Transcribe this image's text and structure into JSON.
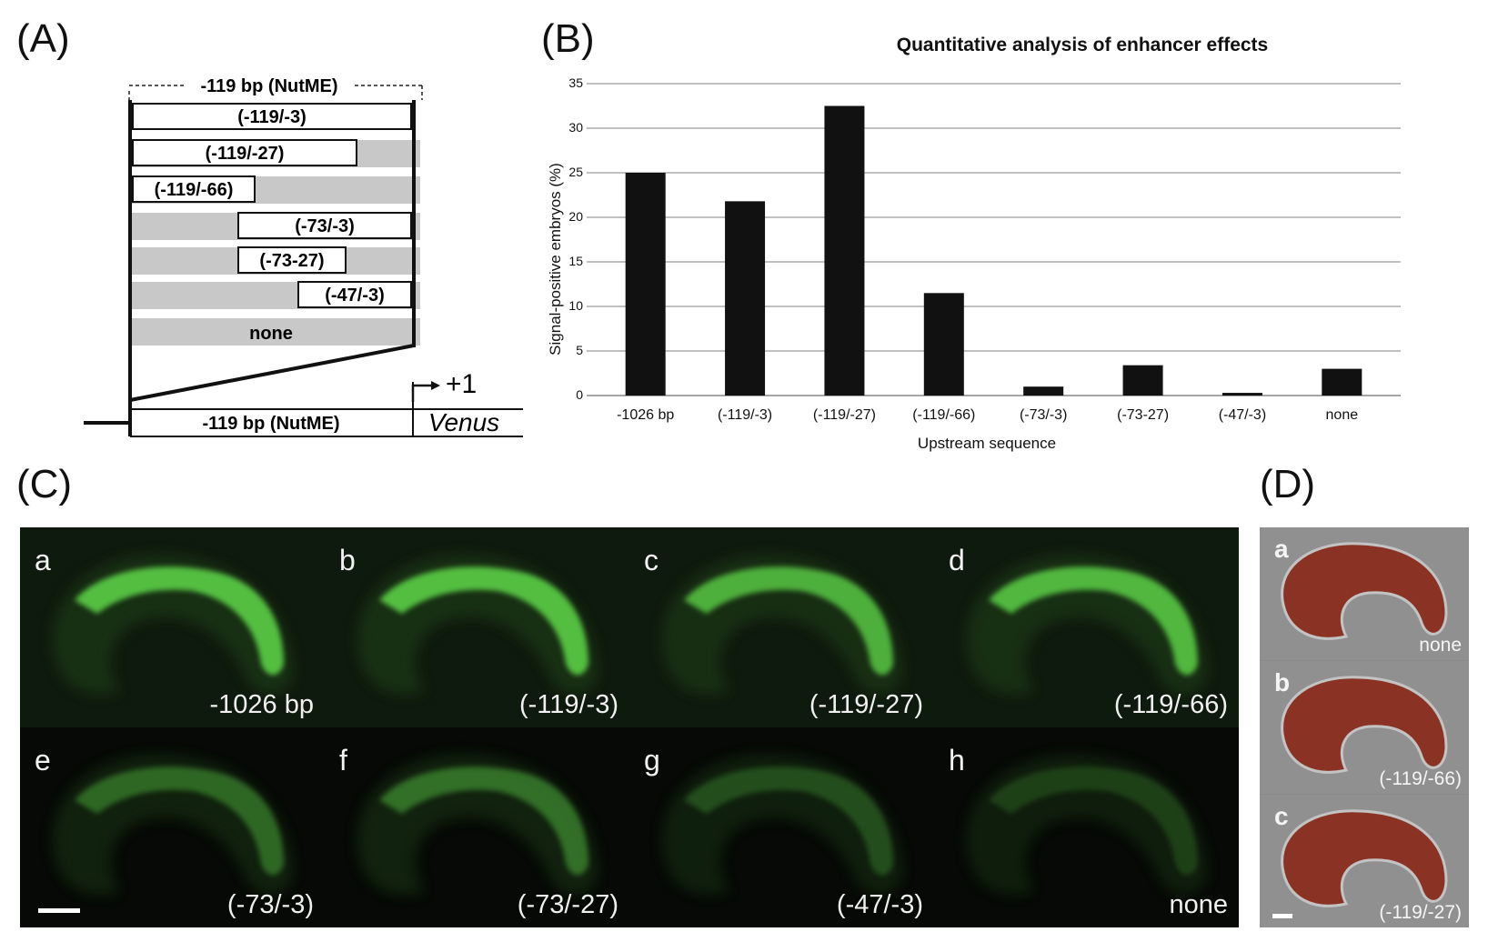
{
  "panel_labels": {
    "a": "(A)",
    "b": "(B)",
    "c": "(C)",
    "d": "(D)"
  },
  "panel_a": {
    "header": "-119 bp (NutME)",
    "constructs": [
      "(-119/-3)",
      "(-119/-27)",
      "(-119/-66)",
      "(-73/-3)",
      "(-73-27)",
      "(-47/-3)",
      "none"
    ],
    "promoter_label": "-119 bp (NutME)",
    "tss_label": "+1",
    "reporter_label": "Venus"
  },
  "chart_data": {
    "type": "bar",
    "title": "Quantitative analysis of enhancer effects",
    "xlabel": "Upstream sequence",
    "ylabel": "Signal-positive embryos (%)",
    "categories": [
      "-1026 bp",
      "(-119/-3)",
      "(-119/-27)",
      "(-119/-66)",
      "(-73/-3)",
      "(-73-27)",
      "(-47/-3)",
      "none"
    ],
    "values": [
      25,
      21.8,
      32.5,
      11.5,
      1,
      3.4,
      0.3,
      3
    ],
    "ylim": [
      0,
      35
    ],
    "yticks": [
      "0",
      "5",
      "10",
      "15",
      "20",
      "25",
      "30",
      "35"
    ],
    "grid": true,
    "bar_color": "#111111"
  },
  "panel_c": {
    "cells": [
      {
        "letter": "a",
        "caption": "-1026 bp"
      },
      {
        "letter": "b",
        "caption": "(-119/-3)"
      },
      {
        "letter": "c",
        "caption": "(-119/-27)"
      },
      {
        "letter": "d",
        "caption": "(-119/-66)"
      },
      {
        "letter": "e",
        "caption": "(-73/-3)"
      },
      {
        "letter": "f",
        "caption": "(-73/-27)"
      },
      {
        "letter": "g",
        "caption": "(-47/-3)"
      },
      {
        "letter": "h",
        "caption": "none"
      }
    ],
    "signal_color": "#5fd84a"
  },
  "panel_d": {
    "cells": [
      {
        "letter": "a",
        "caption": "none"
      },
      {
        "letter": "b",
        "caption": "(-119/-66)"
      },
      {
        "letter": "c",
        "caption": "(-119/-27)"
      }
    ],
    "stain_color": "#8a2a1a"
  }
}
